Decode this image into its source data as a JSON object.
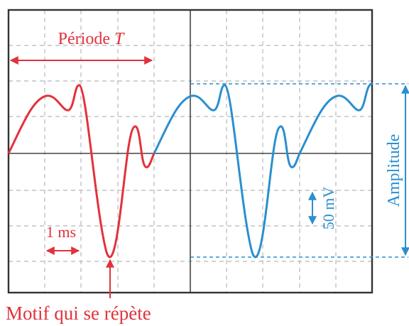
{
  "labels": {
    "period": "Période ",
    "period_symbol": "T",
    "time_division": "1 ms",
    "voltage_division": "50 mV",
    "amplitude": "Amplitude",
    "motif": "Motif qui se répète"
  }
}
